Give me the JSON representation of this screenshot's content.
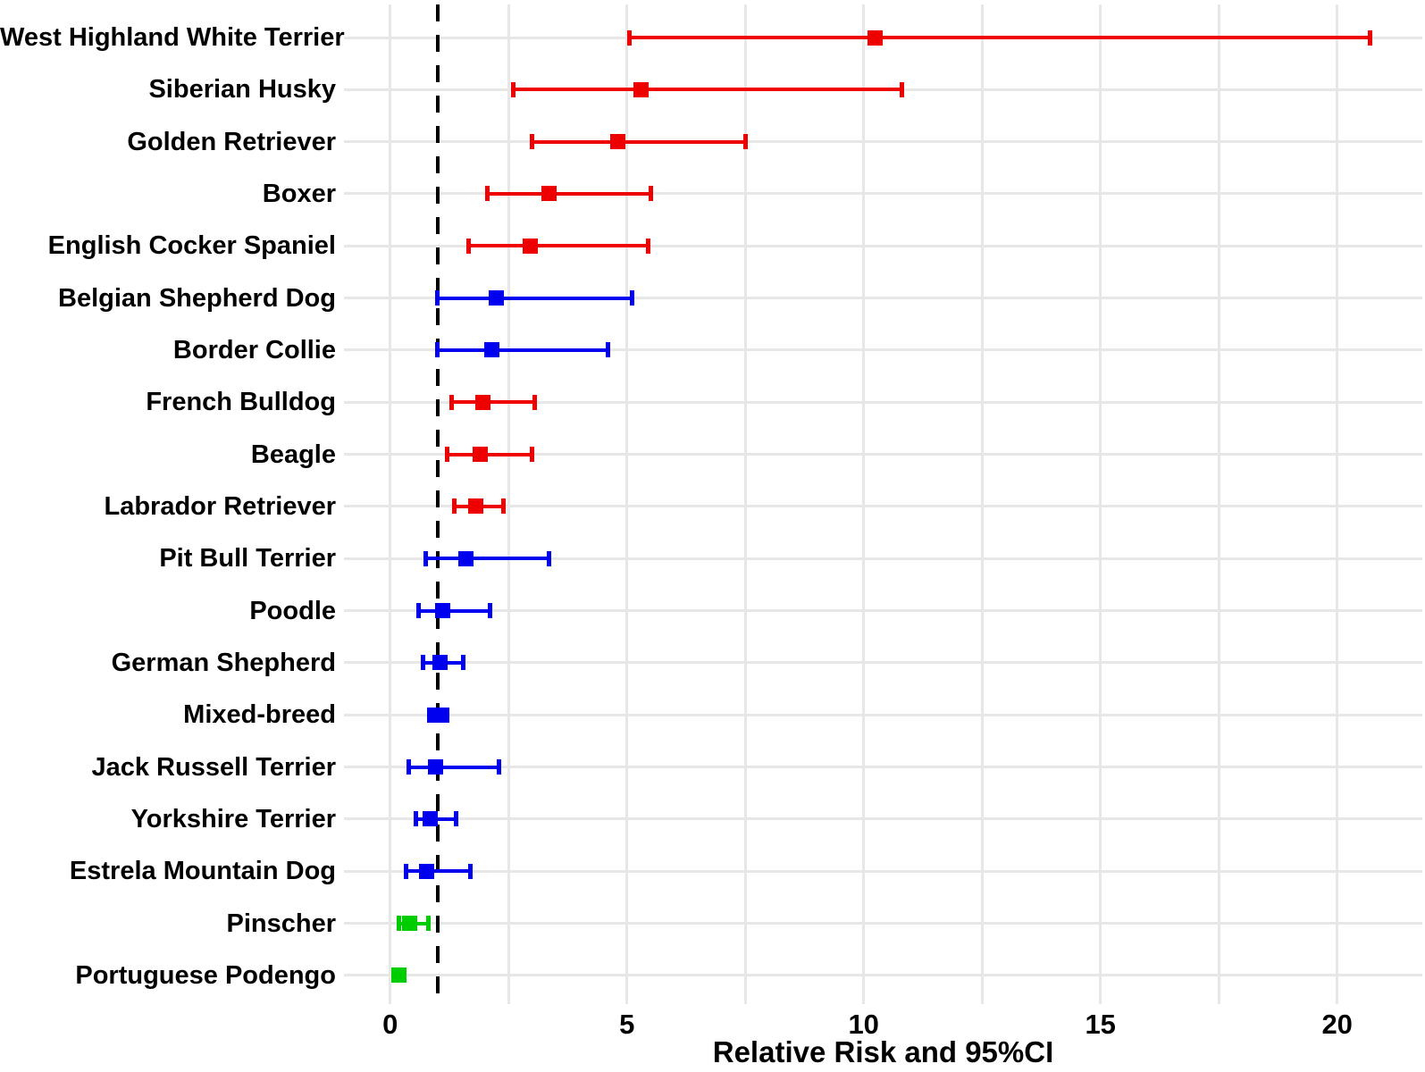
{
  "figure": {
    "background": "#ffffff"
  },
  "chart_data": {
    "type": "forest",
    "title": "",
    "xlabel": "Relative Risk and 95%CI",
    "ylabel": "",
    "x_ticks": [
      0,
      5,
      10,
      15,
      20
    ],
    "x_gridlines": [
      0,
      2.5,
      5,
      7.5,
      10,
      12.5,
      15,
      17.5,
      20
    ],
    "x_domain": [
      -1.0,
      21.8
    ],
    "reference_line_x": 1,
    "grid": "on",
    "legend": "none",
    "colors": {
      "risk_increased": "#ee0000",
      "risk_nonsignificant": "#0000ee",
      "risk_decreased": "#00cd00",
      "gridline": "#e7e7e7",
      "reference_line": "#000000",
      "text": "#000000"
    },
    "rows": [
      {
        "breed": "West Highland White Terrier",
        "rr": 10.25,
        "ci_low": 5.05,
        "ci_high": 20.7,
        "group": "risk_increased"
      },
      {
        "breed": "Siberian Husky",
        "rr": 5.3,
        "ci_low": 2.6,
        "ci_high": 10.8,
        "group": "risk_increased"
      },
      {
        "breed": "Golden Retriever",
        "rr": 4.8,
        "ci_low": 3.0,
        "ci_high": 7.5,
        "group": "risk_increased"
      },
      {
        "breed": "Boxer",
        "rr": 3.35,
        "ci_low": 2.05,
        "ci_high": 5.5,
        "group": "risk_increased"
      },
      {
        "breed": "English Cocker Spaniel",
        "rr": 2.95,
        "ci_low": 1.65,
        "ci_high": 5.45,
        "group": "risk_increased"
      },
      {
        "breed": "Belgian Shepherd Dog",
        "rr": 2.25,
        "ci_low": 1.0,
        "ci_high": 5.1,
        "group": "risk_nonsignificant"
      },
      {
        "breed": "Border Collie",
        "rr": 2.15,
        "ci_low": 1.0,
        "ci_high": 4.6,
        "group": "risk_nonsignificant"
      },
      {
        "breed": "French Bulldog",
        "rr": 1.95,
        "ci_low": 1.3,
        "ci_high": 3.05,
        "group": "risk_increased"
      },
      {
        "breed": "Beagle",
        "rr": 1.9,
        "ci_low": 1.2,
        "ci_high": 3.0,
        "group": "risk_increased"
      },
      {
        "breed": "Labrador Retriever",
        "rr": 1.8,
        "ci_low": 1.35,
        "ci_high": 2.4,
        "group": "risk_increased"
      },
      {
        "breed": "Pit Bull Terrier",
        "rr": 1.6,
        "ci_low": 0.75,
        "ci_high": 3.35,
        "group": "risk_nonsignificant"
      },
      {
        "breed": "Poodle",
        "rr": 1.1,
        "ci_low": 0.6,
        "ci_high": 2.1,
        "group": "risk_nonsignificant"
      },
      {
        "breed": "German Shepherd",
        "rr": 1.05,
        "ci_low": 0.7,
        "ci_high": 1.55,
        "group": "risk_nonsignificant"
      },
      {
        "breed": "Mixed-breed",
        "rr": 1.0,
        "ci_low": 0.83,
        "ci_high": 1.2,
        "group": "risk_nonsignificant"
      },
      {
        "breed": "Jack Russell Terrier",
        "rr": 0.95,
        "ci_low": 0.4,
        "ci_high": 2.3,
        "group": "risk_nonsignificant"
      },
      {
        "breed": "Yorkshire Terrier",
        "rr": 0.85,
        "ci_low": 0.55,
        "ci_high": 1.4,
        "group": "risk_nonsignificant"
      },
      {
        "breed": "Estrela Mountain Dog",
        "rr": 0.77,
        "ci_low": 0.33,
        "ci_high": 1.7,
        "group": "risk_nonsignificant"
      },
      {
        "breed": "Pinscher",
        "rr": 0.41,
        "ci_low": 0.19,
        "ci_high": 0.8,
        "group": "risk_decreased"
      },
      {
        "breed": "Portuguese Podengo",
        "rr": 0.18,
        "ci_low": 0.12,
        "ci_high": 0.28,
        "group": "risk_decreased"
      }
    ]
  }
}
